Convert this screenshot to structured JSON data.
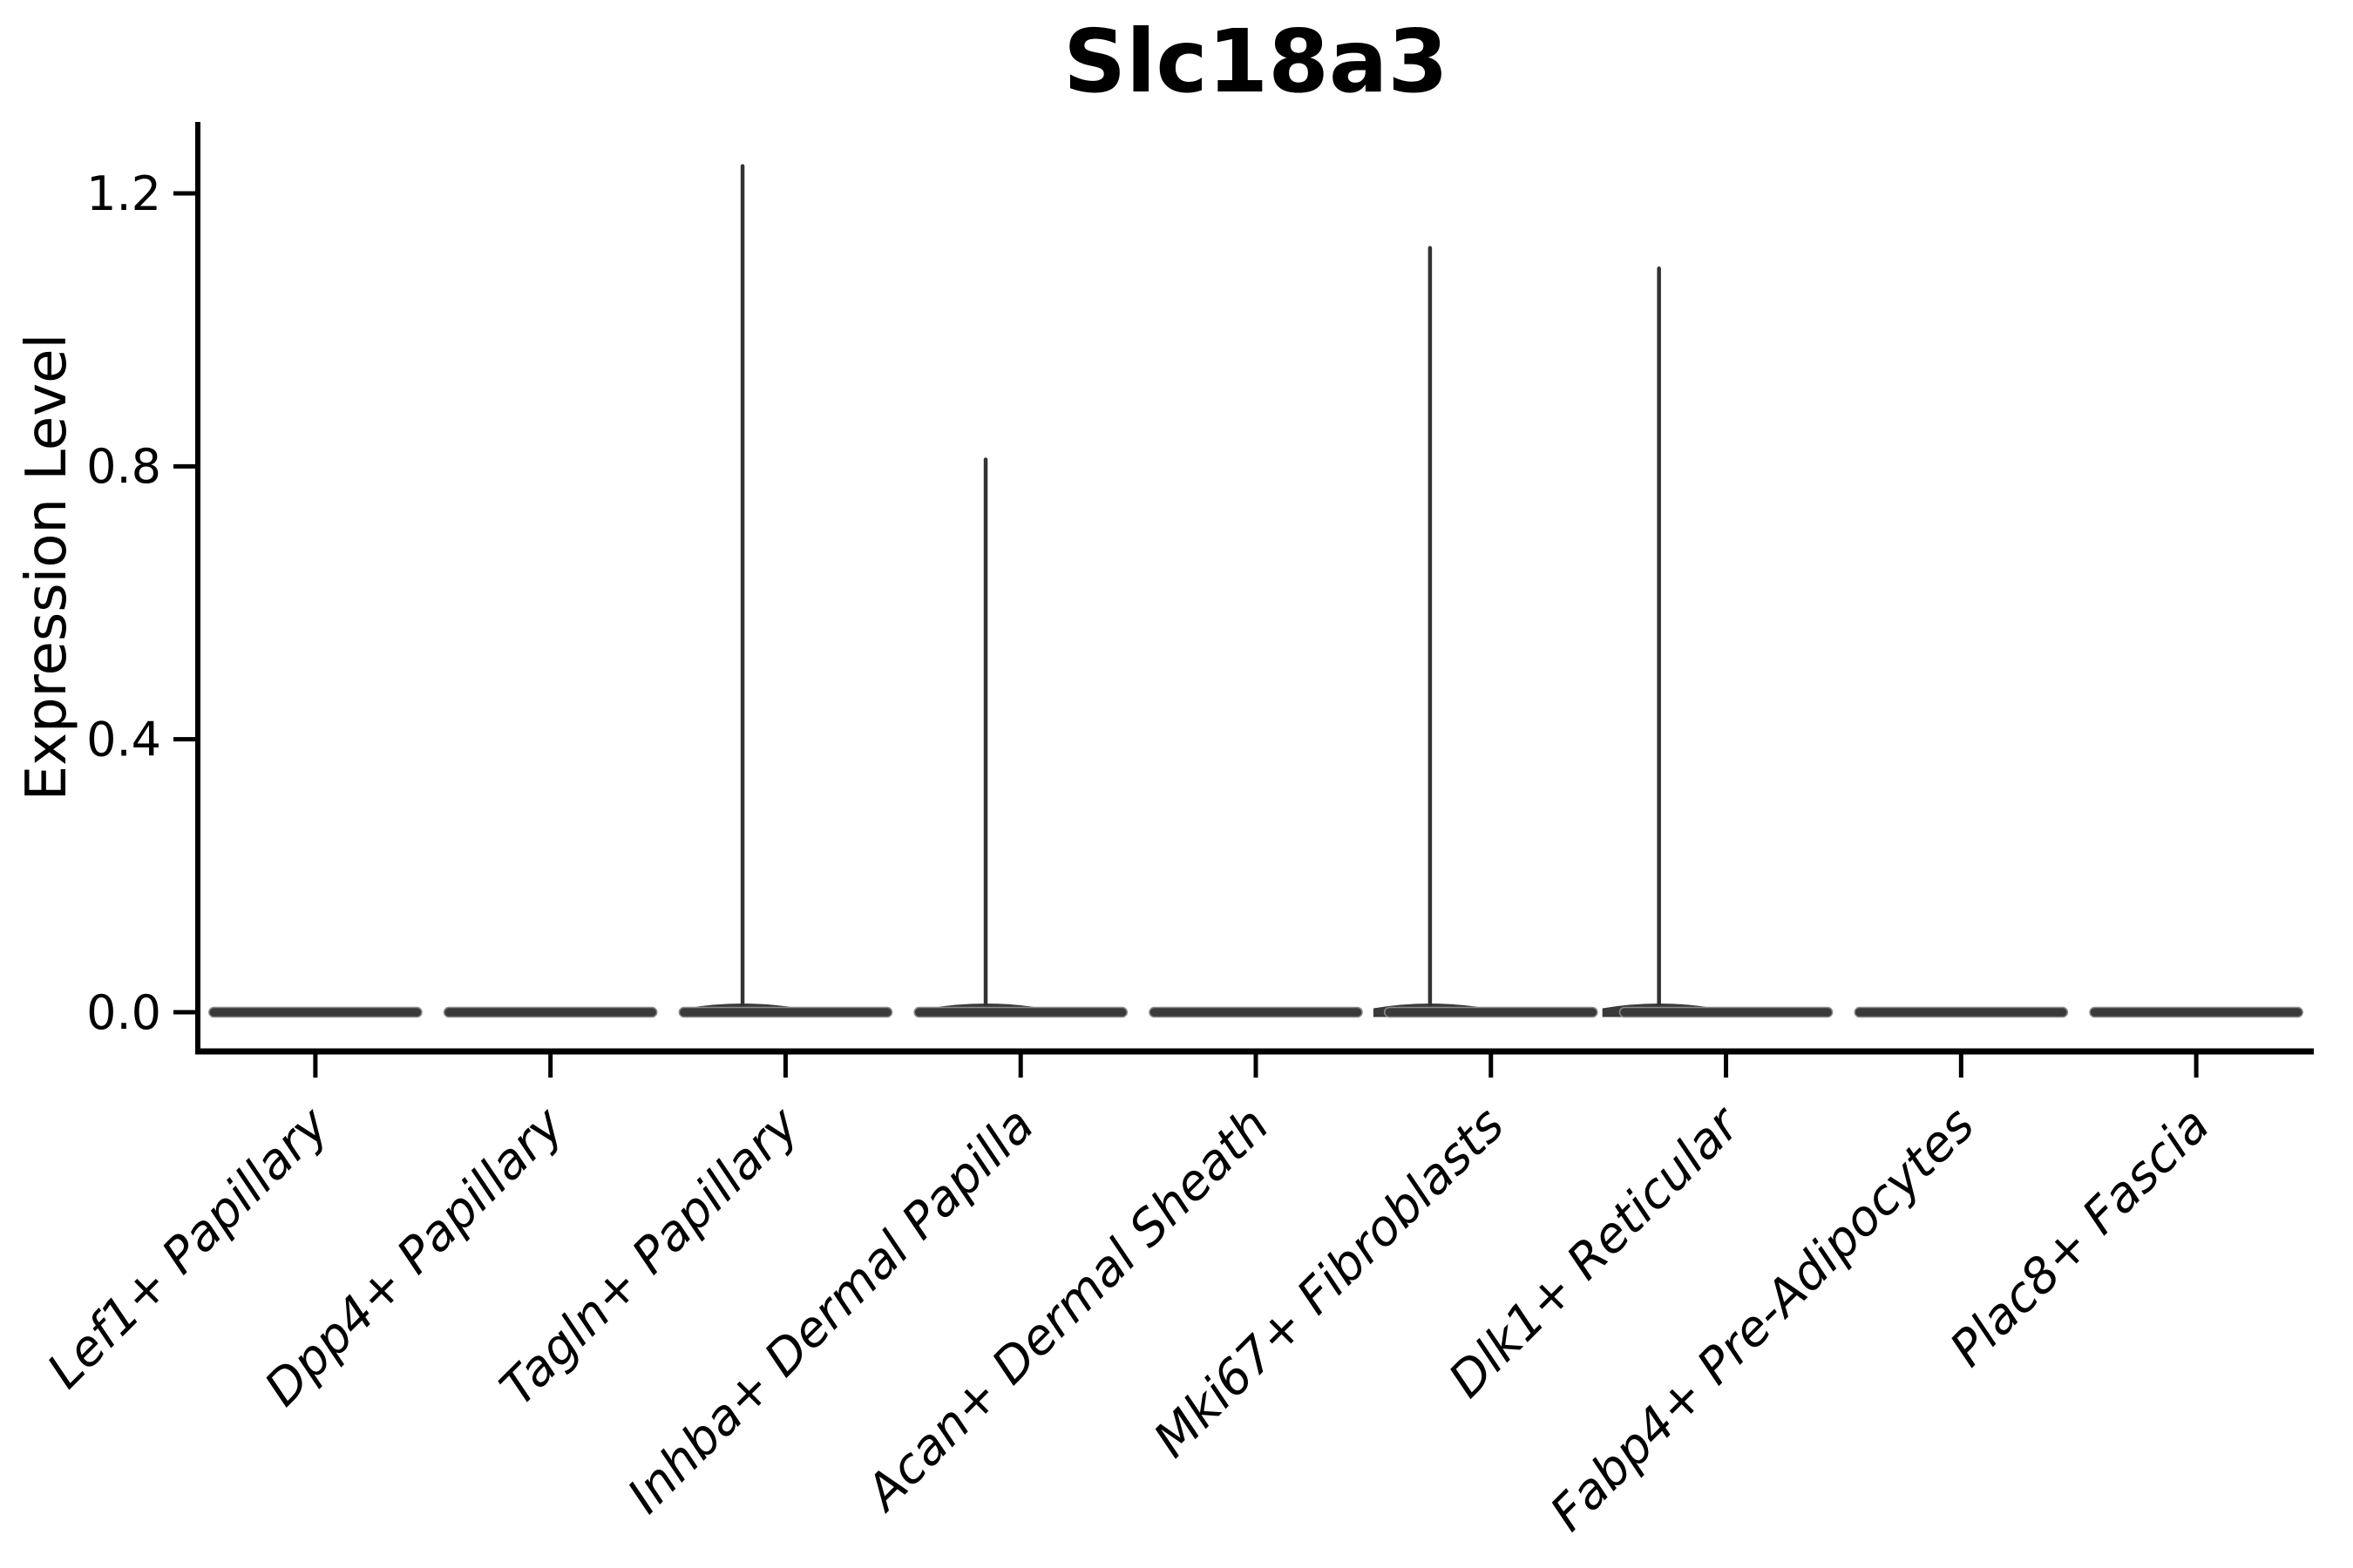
{
  "page": {
    "background": "#ffffff"
  },
  "chart_data": {
    "type": "violin",
    "title": "Slc18a3",
    "xlabel": "",
    "ylabel": "Expression Level",
    "yticks": [
      0.0,
      0.4,
      0.8,
      1.2
    ],
    "ytick_labels": [
      "0.0",
      "0.4",
      "0.8",
      "1.2"
    ],
    "ylim": [
      -0.057,
      1.305
    ],
    "grid": false,
    "legend": null,
    "categories": [
      "Lef1+ Papillary",
      "Dpp4+ Papillary",
      "Tagln+ Papillary",
      "Inhba+ Dermal Papilla",
      "Acan+ Dermal Sheath",
      "Mki67+ Fibroblasts",
      "Dlk1+ Reticular",
      "Fabp4+ Pre-Adipocytes",
      "Plac8+ Fascia"
    ],
    "violins": [
      {
        "category": "Lef1+ Papillary",
        "median": 0.0,
        "max": 0.0,
        "spike": false,
        "spike_offset_frac": 0
      },
      {
        "category": "Dpp4+ Papillary",
        "median": 0.0,
        "max": 0.0,
        "spike": false,
        "spike_offset_frac": 0
      },
      {
        "category": "Tagln+ Papillary",
        "median": 0.0,
        "max": 1.24,
        "spike": true,
        "spike_offset_frac": -0.183
      },
      {
        "category": "Inhba+ Dermal Papilla",
        "median": 0.0,
        "max": 0.81,
        "spike": true,
        "spike_offset_frac": -0.149
      },
      {
        "category": "Acan+ Dermal Sheath",
        "median": 0.0,
        "max": 0.0,
        "spike": false,
        "spike_offset_frac": 0
      },
      {
        "category": "Mki67+ Fibroblasts",
        "median": 0.0,
        "max": 1.12,
        "spike": true,
        "spike_offset_frac": -0.259
      },
      {
        "category": "Dlk1+ Reticular",
        "median": 0.0,
        "max": 1.09,
        "spike": true,
        "spike_offset_frac": -0.285
      },
      {
        "category": "Fabp4+ Pre-Adipocytes",
        "median": 0.0,
        "max": 0.0,
        "spike": false,
        "spike_offset_frac": 0
      },
      {
        "category": "Plac8+ Fascia",
        "median": 0.0,
        "max": 0.0,
        "spike": false,
        "spike_offset_frac": 0
      }
    ],
    "colors": {
      "violin_fill": "#3a3a3a",
      "violin_edge": "#8a8a8a",
      "spike": "#333333",
      "axis": "#000000",
      "text": "#000000",
      "background": "#ffffff"
    }
  }
}
